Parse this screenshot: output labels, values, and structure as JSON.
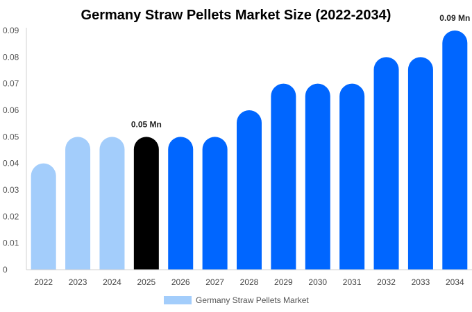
{
  "chart_data": {
    "type": "bar",
    "title": "Germany Straw Pellets Market Size (2022-2034)",
    "xlabel": "",
    "ylabel": "",
    "categories": [
      "2022",
      "2023",
      "2024",
      "2025",
      "2026",
      "2027",
      "2028",
      "2029",
      "2030",
      "2031",
      "2032",
      "2033",
      "2034"
    ],
    "series": [
      {
        "name": "Germany Straw Pellets Market",
        "values": [
          0.04,
          0.05,
          0.05,
          0.05,
          0.05,
          0.05,
          0.06,
          0.07,
          0.07,
          0.07,
          0.08,
          0.08,
          0.09
        ]
      }
    ],
    "bar_colors": [
      "#a3cdfb",
      "#a3cdfb",
      "#a3cdfb",
      "#000000",
      "#0066ff",
      "#0066ff",
      "#0066ff",
      "#0066ff",
      "#0066ff",
      "#0066ff",
      "#0066ff",
      "#0066ff",
      "#0066ff"
    ],
    "ylim": [
      0,
      0.09
    ],
    "yticks": [
      "0",
      "0.01",
      "0.02",
      "0.03",
      "0.04",
      "0.05",
      "0.06",
      "0.07",
      "0.08",
      "0.09"
    ],
    "annotations": [
      {
        "category": "2025",
        "text": "0.05 Mn"
      },
      {
        "category": "2034",
        "text": "0.09 Mn"
      }
    ],
    "legend": {
      "label": "Germany Straw Pellets Market",
      "color": "#a3cdfb",
      "position": "bottom"
    },
    "grid": false
  }
}
